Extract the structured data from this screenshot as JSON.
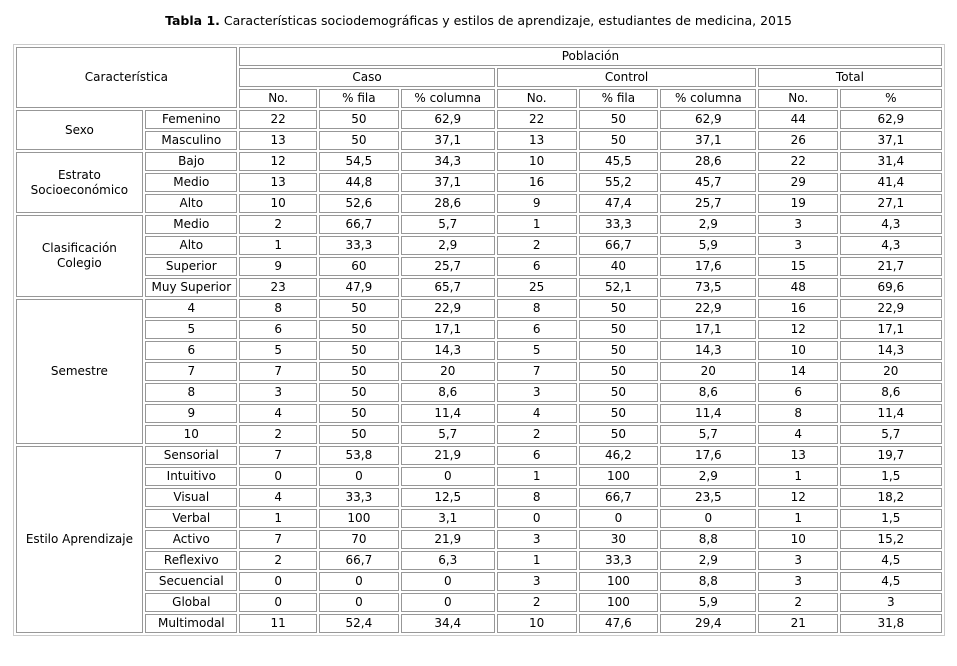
{
  "title": {
    "label": "Tabla 1.",
    "text": " Características sociodemográficas y estilos de aprendizaje, estudiantes de medicina, 2015"
  },
  "colors": {
    "background": "#ffffff",
    "text": "#000000",
    "cell_border": "#979797",
    "outer_border": "#cbcbcb"
  },
  "table": {
    "header": {
      "caracteristica": "Característica",
      "poblacion": "Población",
      "caso": "Caso",
      "control": "Control",
      "total": "Total",
      "sub_columns": [
        "No.",
        "% fila",
        "% columna",
        "No.",
        "% fila",
        "% columna",
        "No.",
        "%"
      ]
    },
    "sections": [
      {
        "name": "Sexo",
        "rows": [
          {
            "label": "Femenino",
            "values": [
              "22",
              "50",
              "62,9",
              "22",
              "50",
              "62,9",
              "44",
              "62,9"
            ]
          },
          {
            "label": "Masculino",
            "values": [
              "13",
              "50",
              "37,1",
              "13",
              "50",
              "37,1",
              "26",
              "37,1"
            ]
          }
        ]
      },
      {
        "name": "Estrato Socioeconómico",
        "rows": [
          {
            "label": "Bajo",
            "values": [
              "12",
              "54,5",
              "34,3",
              "10",
              "45,5",
              "28,6",
              "22",
              "31,4"
            ]
          },
          {
            "label": "Medio",
            "values": [
              "13",
              "44,8",
              "37,1",
              "16",
              "55,2",
              "45,7",
              "29",
              "41,4"
            ]
          },
          {
            "label": "Alto",
            "values": [
              "10",
              "52,6",
              "28,6",
              "9",
              "47,4",
              "25,7",
              "19",
              "27,1"
            ]
          }
        ]
      },
      {
        "name": "Clasificación Colegio",
        "rows": [
          {
            "label": "Medio",
            "values": [
              "2",
              "66,7",
              "5,7",
              "1",
              "33,3",
              "2,9",
              "3",
              "4,3"
            ]
          },
          {
            "label": "Alto",
            "values": [
              "1",
              "33,3",
              "2,9",
              "2",
              "66,7",
              "5,9",
              "3",
              "4,3"
            ]
          },
          {
            "label": "Superior",
            "values": [
              "9",
              "60",
              "25,7",
              "6",
              "40",
              "17,6",
              "15",
              "21,7"
            ]
          },
          {
            "label": "Muy Superior",
            "values": [
              "23",
              "47,9",
              "65,7",
              "25",
              "52,1",
              "73,5",
              "48",
              "69,6"
            ]
          }
        ]
      },
      {
        "name": "Semestre",
        "rows": [
          {
            "label": "4",
            "values": [
              "8",
              "50",
              "22,9",
              "8",
              "50",
              "22,9",
              "16",
              "22,9"
            ]
          },
          {
            "label": "5",
            "values": [
              "6",
              "50",
              "17,1",
              "6",
              "50",
              "17,1",
              "12",
              "17,1"
            ]
          },
          {
            "label": "6",
            "values": [
              "5",
              "50",
              "14,3",
              "5",
              "50",
              "14,3",
              "10",
              "14,3"
            ]
          },
          {
            "label": "7",
            "values": [
              "7",
              "50",
              "20",
              "7",
              "50",
              "20",
              "14",
              "20"
            ]
          },
          {
            "label": "8",
            "values": [
              "3",
              "50",
              "8,6",
              "3",
              "50",
              "8,6",
              "6",
              "8,6"
            ]
          },
          {
            "label": "9",
            "values": [
              "4",
              "50",
              "11,4",
              "4",
              "50",
              "11,4",
              "8",
              "11,4"
            ]
          },
          {
            "label": "10",
            "values": [
              "2",
              "50",
              "5,7",
              "2",
              "50",
              "5,7",
              "4",
              "5,7"
            ]
          }
        ]
      },
      {
        "name": "Estilo Aprendizaje",
        "rows": [
          {
            "label": "Sensorial",
            "values": [
              "7",
              "53,8",
              "21,9",
              "6",
              "46,2",
              "17,6",
              "13",
              "19,7"
            ]
          },
          {
            "label": "Intuitivo",
            "values": [
              "0",
              "0",
              "0",
              "1",
              "100",
              "2,9",
              "1",
              "1,5"
            ]
          },
          {
            "label": "Visual",
            "values": [
              "4",
              "33,3",
              "12,5",
              "8",
              "66,7",
              "23,5",
              "12",
              "18,2"
            ]
          },
          {
            "label": "Verbal",
            "values": [
              "1",
              "100",
              "3,1",
              "0",
              "0",
              "0",
              "1",
              "1,5"
            ]
          },
          {
            "label": "Activo",
            "values": [
              "7",
              "70",
              "21,9",
              "3",
              "30",
              "8,8",
              "10",
              "15,2"
            ]
          },
          {
            "label": "Reflexivo",
            "values": [
              "2",
              "66,7",
              "6,3",
              "1",
              "33,3",
              "2,9",
              "3",
              "4,5"
            ]
          },
          {
            "label": "Secuencial",
            "values": [
              "0",
              "0",
              "0",
              "3",
              "100",
              "8,8",
              "3",
              "4,5"
            ]
          },
          {
            "label": "Global",
            "values": [
              "0",
              "0",
              "0",
              "2",
              "100",
              "5,9",
              "2",
              "3"
            ]
          },
          {
            "label": "Multimodal",
            "values": [
              "11",
              "52,4",
              "34,4",
              "10",
              "47,6",
              "29,4",
              "21",
              "31,8"
            ]
          }
        ]
      }
    ]
  }
}
